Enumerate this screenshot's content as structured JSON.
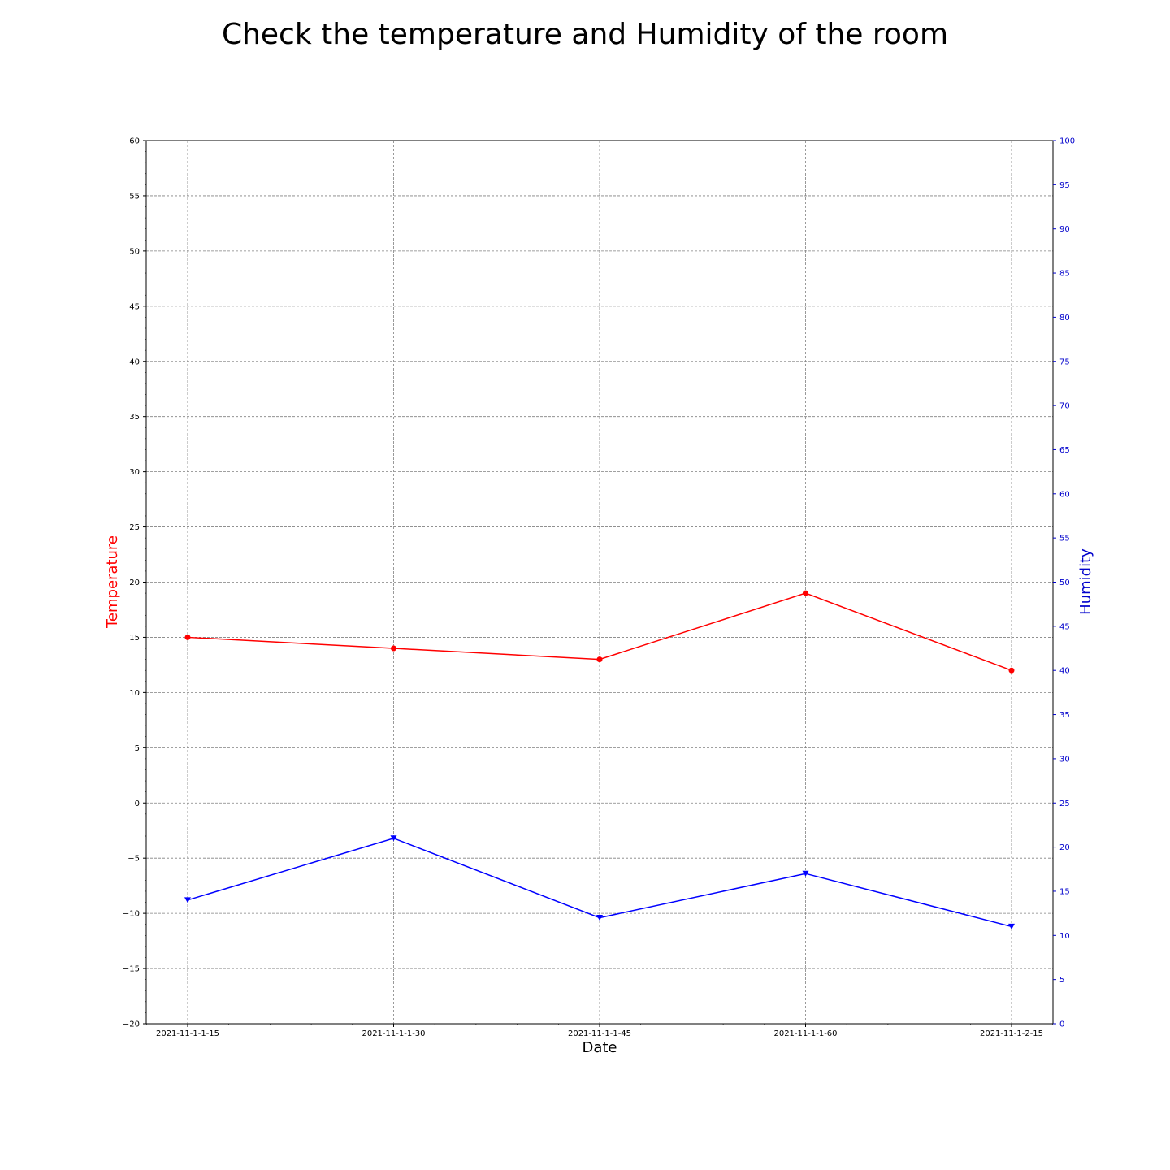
{
  "chart_data": {
    "type": "line",
    "title": "Check the temperature and Humidity of the room",
    "xlabel": "Date",
    "ylabel": "Temperature",
    "y2label": "Humidity",
    "categories": [
      "2021-11-1-1-15",
      "2021-11-1-1-30",
      "2021-11-1-1-45",
      "2021-11-1-1-60",
      "2021-11-1-2-15"
    ],
    "ylim": [
      -20,
      60
    ],
    "y2lim": [
      0,
      100
    ],
    "yticks": [
      -20,
      -15,
      -10,
      -5,
      0,
      5,
      10,
      15,
      20,
      25,
      30,
      35,
      40,
      45,
      50,
      55,
      60
    ],
    "y2ticks": [
      0,
      5,
      10,
      15,
      20,
      25,
      30,
      35,
      40,
      45,
      50,
      55,
      60,
      65,
      70,
      75,
      80,
      85,
      90,
      95,
      100
    ],
    "grid": true,
    "legend": "none",
    "series": [
      {
        "axis": "left",
        "color": "#ff0000",
        "marker": "circle",
        "values": [
          15,
          14,
          13,
          19,
          12
        ]
      },
      {
        "axis": "right",
        "color": "#0000ff",
        "marker": "triangle-down",
        "values": [
          14,
          21,
          12,
          17,
          11
        ]
      }
    ],
    "colors": {
      "left_axis_label": "#ff0000",
      "right_axis": "#0000cc",
      "grid": "#808080"
    }
  }
}
